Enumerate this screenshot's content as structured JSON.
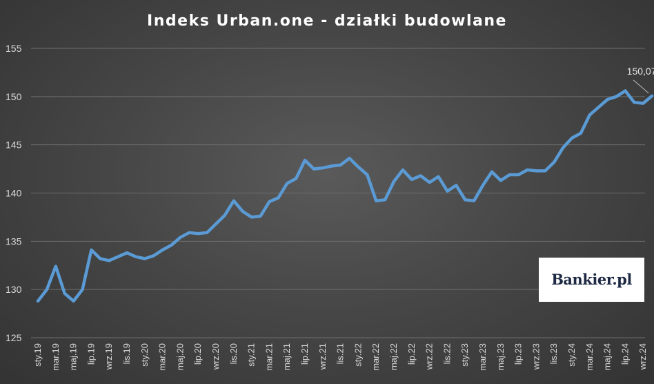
{
  "chart_data": {
    "type": "line",
    "title": "Indeks Urban.one - działki budowlane",
    "xlabel": "",
    "ylabel": "",
    "ylim": [
      125,
      155
    ],
    "yticks": [
      "125",
      "130",
      "135",
      "140",
      "145",
      "150",
      "155"
    ],
    "grid": true,
    "series_color": "#5b9bd5",
    "x": [
      "sty.19",
      "lut.19",
      "mar.19",
      "kwi.19",
      "maj.19",
      "cze.19",
      "lip.19",
      "sie.19",
      "wrz.19",
      "paź.19",
      "lis.19",
      "gru.19",
      "sty.20",
      "lut.20",
      "mar.20",
      "kwi.20",
      "maj.20",
      "cze.20",
      "lip.20",
      "sie.20",
      "wrz.20",
      "paź.20",
      "lis.20",
      "gru.20",
      "sty.21",
      "lut.21",
      "mar.21",
      "kwi.21",
      "maj.21",
      "cze.21",
      "lip.21",
      "sie.21",
      "wrz.21",
      "paź.21",
      "lis.21",
      "gru.21",
      "sty.22",
      "lut.22",
      "mar.22",
      "kwi.22",
      "maj.22",
      "cze.22",
      "lip.22",
      "sie.22",
      "wrz.22",
      "paź.22",
      "lis.22",
      "gru.22",
      "sty.23",
      "lut.23",
      "mar.23",
      "kwi.23",
      "maj.23",
      "cze.23",
      "lip.23",
      "sie.23",
      "wrz.23",
      "paź.23",
      "lis.23",
      "gru.23",
      "sty.24",
      "lut.24",
      "mar.24",
      "kwi.24",
      "maj.24",
      "cze.24",
      "lip.24",
      "sie.24",
      "wrz.24",
      "paź.24"
    ],
    "xtick_labels": [
      "sty.19",
      "mar.19",
      "maj.19",
      "lip.19",
      "wrz.19",
      "lis.19",
      "sty.20",
      "mar.20",
      "maj.20",
      "lip.20",
      "wrz.20",
      "lis.20",
      "sty.21",
      "mar.21",
      "maj.21",
      "lip.21",
      "wrz.21",
      "lis.21",
      "sty.22",
      "mar.22",
      "maj.22",
      "lip.22",
      "wrz.22",
      "lis.22",
      "sty.23",
      "mar.23",
      "maj.23",
      "lip.23",
      "wrz.23",
      "lis.23",
      "sty.24",
      "mar.24",
      "maj.24",
      "lip.24",
      "wrz.24"
    ],
    "values": [
      128.8,
      130.0,
      132.4,
      129.6,
      128.8,
      130.0,
      134.1,
      133.2,
      133.0,
      133.4,
      133.8,
      133.4,
      133.2,
      133.5,
      134.1,
      134.6,
      135.4,
      135.9,
      135.8,
      135.9,
      136.8,
      137.7,
      139.2,
      138.1,
      137.5,
      137.6,
      139.1,
      139.5,
      141.0,
      141.5,
      143.4,
      142.5,
      142.6,
      142.8,
      142.9,
      143.6,
      142.7,
      141.9,
      139.2,
      139.3,
      141.2,
      142.4,
      141.4,
      141.8,
      141.1,
      141.7,
      140.2,
      140.8,
      139.3,
      139.2,
      140.8,
      142.2,
      141.3,
      141.9,
      141.9,
      142.4,
      142.3,
      142.3,
      143.2,
      144.7,
      145.7,
      146.2,
      148.1,
      148.9,
      149.7,
      150.0,
      150.6,
      149.4,
      149.3,
      150.07
    ],
    "annotation": {
      "label": "150,07",
      "point_index": 69
    }
  },
  "logo": {
    "text": "Bankier.pl",
    "brand_color": "#1e2a44",
    "dot_color": "#e3000f"
  }
}
